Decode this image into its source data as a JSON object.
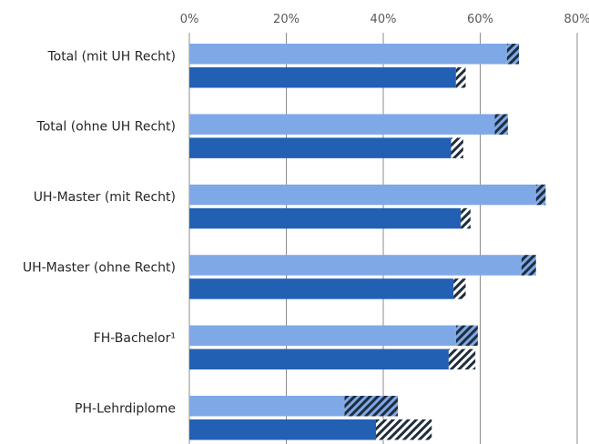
{
  "chart_data": {
    "type": "bar",
    "orientation": "horizontal",
    "title": "",
    "xlabel": "",
    "ylabel": "",
    "xlim": [
      0,
      80
    ],
    "x_ticks": [
      0,
      20,
      40,
      60,
      80
    ],
    "x_tick_labels": [
      "0%",
      "20%",
      "40%",
      "60%",
      "80%"
    ],
    "grid": true,
    "legend": "none",
    "categories": [
      "Total (mit UH Recht)",
      "Total (ohne UH Recht)",
      "UH-Master (mit Recht)",
      "UH-Master (ohne Recht)",
      "FH-Bachelor¹",
      "PH-Lehrdiplome"
    ],
    "series": [
      {
        "color": "#7fa8e6",
        "values": [
          65.5,
          63,
          71.5,
          68.5,
          55,
          32
        ],
        "hatched_range": [
          [
            65.5,
            68
          ],
          [
            63,
            65.7
          ],
          [
            71.5,
            73.5
          ],
          [
            68.5,
            71.5
          ],
          [
            55,
            59.5
          ],
          [
            32,
            43
          ]
        ]
      },
      {
        "color": "#2260b3",
        "values": [
          55,
          54,
          56,
          54.5,
          53.5,
          38.5
        ],
        "hatched_range": [
          [
            55,
            57
          ],
          [
            54,
            56.5
          ],
          [
            56,
            58
          ],
          [
            54.5,
            57
          ],
          [
            53.5,
            59
          ],
          [
            38.5,
            50
          ]
        ]
      }
    ],
    "hatch_color": "#1f2d3d"
  }
}
